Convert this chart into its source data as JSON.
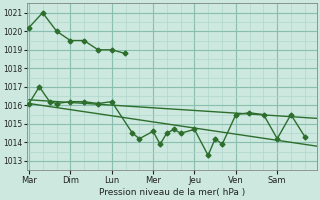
{
  "bg_color": "#cce8df",
  "grid_color": "#b0d8cc",
  "major_grid_color": "#8abfb0",
  "line_color": "#2d6e2d",
  "marker_color": "#2d6e2d",
  "xlabel": "Pression niveau de la mer( hPa )",
  "ylim": [
    1012.5,
    1021.5
  ],
  "yticks": [
    1013,
    1014,
    1015,
    1016,
    1017,
    1018,
    1019,
    1020,
    1021
  ],
  "xtick_labels": [
    "Mar",
    "Dim",
    "Lun",
    "Mer",
    "Jeu",
    "Ven",
    "Sam"
  ],
  "x_positions": [
    0,
    1,
    2,
    3,
    4,
    5,
    6
  ],
  "xlim": [
    -0.05,
    6.95
  ],
  "series1_x": [
    0.0,
    0.33,
    0.67,
    1.0,
    1.33,
    1.67,
    2.0,
    2.33
  ],
  "series1_y": [
    1020.2,
    1021.0,
    1020.0,
    1019.5,
    1019.5,
    1019.0,
    1019.0,
    1018.8
  ],
  "series2_x": [
    0.0,
    0.25,
    0.5,
    0.67,
    1.0,
    1.33,
    1.67,
    2.0,
    2.5,
    2.67,
    3.0,
    3.17,
    3.33,
    3.5,
    3.67,
    4.0,
    4.33,
    4.5,
    4.67,
    5.0,
    5.33,
    5.67,
    6.0,
    6.33,
    6.67
  ],
  "series2_y": [
    1016.1,
    1017.0,
    1016.2,
    1016.1,
    1016.2,
    1016.2,
    1016.1,
    1016.2,
    1014.5,
    1014.2,
    1014.6,
    1013.9,
    1014.5,
    1014.7,
    1014.5,
    1014.7,
    1013.3,
    1014.2,
    1013.9,
    1015.5,
    1015.6,
    1015.5,
    1014.2,
    1015.5,
    1014.3
  ],
  "trend1_x": [
    0.0,
    6.95
  ],
  "trend1_y": [
    1016.1,
    1013.8
  ],
  "trend2_x": [
    0.0,
    6.95
  ],
  "trend2_y": [
    1016.3,
    1015.3
  ]
}
